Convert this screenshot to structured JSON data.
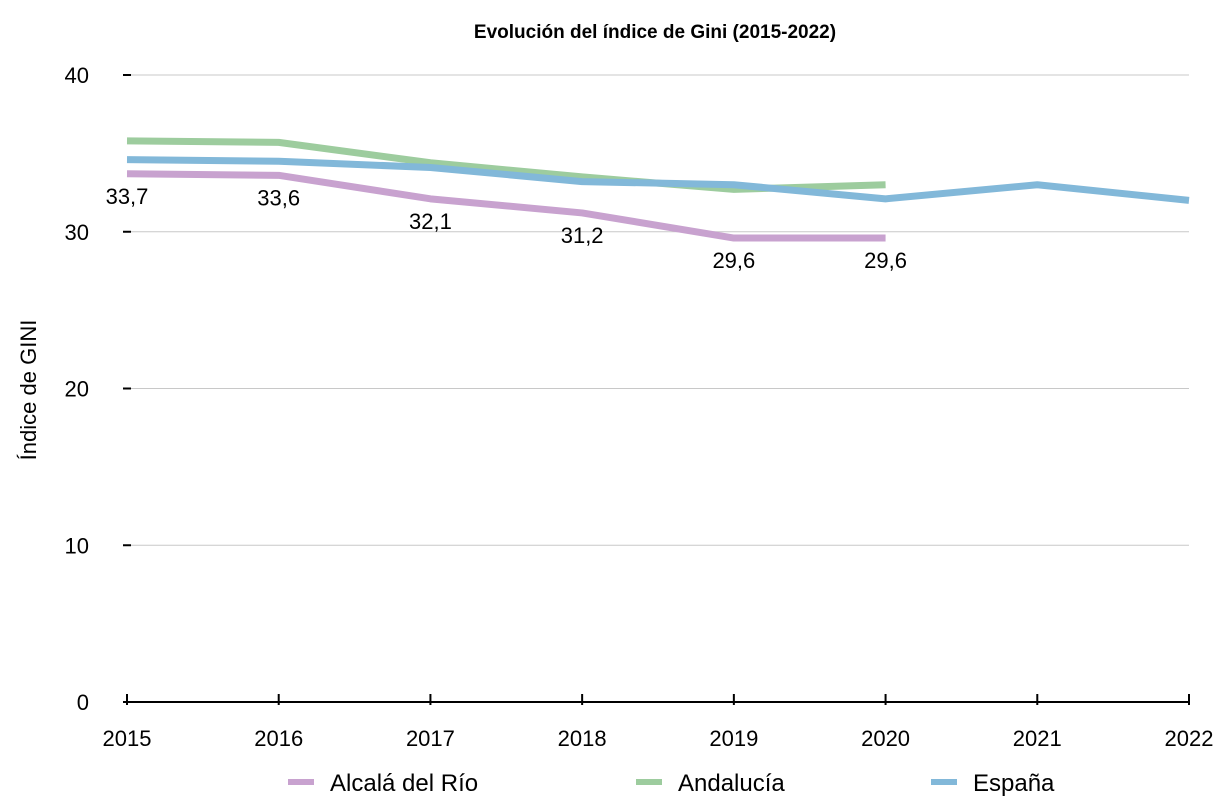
{
  "chart_data": {
    "type": "line",
    "title": "Evolución del índice de Gini (2015-2022)",
    "xlabel": "",
    "ylabel": "Índice de GINI",
    "categories": [
      "2015",
      "2016",
      "2017",
      "2018",
      "2019",
      "2020",
      "2021",
      "2022"
    ],
    "y_ticks": [
      "0",
      "10",
      "20",
      "30",
      "40"
    ],
    "ylim": [
      0,
      40
    ],
    "grid": true,
    "legend_position": "bottom",
    "series": [
      {
        "name": "Alcalá del Río",
        "color": "#c8a2cf",
        "values": [
          33.7,
          33.6,
          32.1,
          31.2,
          29.6,
          29.6,
          null,
          null
        ],
        "labels": [
          "33,7",
          "33,6",
          "32,1",
          "31,2",
          "29,6",
          "29,6",
          null,
          null
        ]
      },
      {
        "name": "Andalucía",
        "color": "#9dcc9e",
        "values": [
          35.8,
          35.7,
          34.4,
          33.5,
          32.7,
          33.0,
          null,
          null
        ]
      },
      {
        "name": "España",
        "color": "#82b8d9",
        "values": [
          34.6,
          34.5,
          34.1,
          33.2,
          33.0,
          32.1,
          33.0,
          32.0
        ]
      }
    ]
  }
}
